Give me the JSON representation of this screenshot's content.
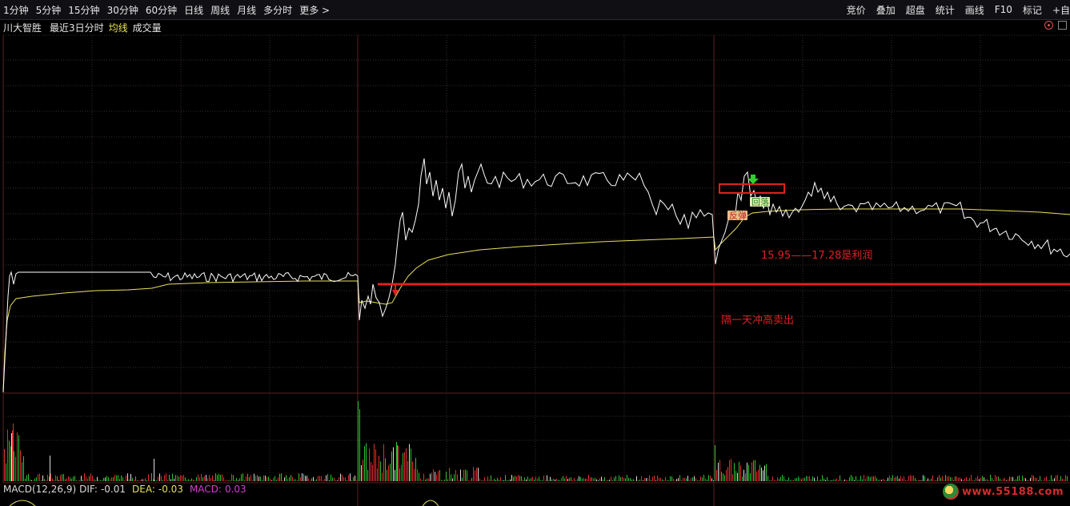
{
  "toolbar": {
    "periods": [
      "1分钟",
      "5分钟",
      "15分钟",
      "30分钟",
      "60分钟",
      "日线",
      "周线",
      "月线",
      "多分时",
      "更多 >"
    ],
    "right_items": [
      "竞价",
      "叠加",
      "超盘",
      "统计",
      "画线",
      "F10",
      "标记",
      "+自"
    ]
  },
  "info": {
    "stock_name": "川大智胜",
    "range_label": "最近3日分时",
    "avg_label": "均线",
    "volume_label": "成交量"
  },
  "annotations": {
    "rebound": "反弹",
    "pullback": "回落",
    "profit_text": "15.95——17.28是利润",
    "sell_text": "隔一天冲高卖出"
  },
  "macd": {
    "name": "MACD(12,26,9)",
    "dif_label": "DIF:",
    "dif_value": "-0.01",
    "dea_label": "DEA:",
    "dea_value": "-0.03",
    "macd_label": "MACD:",
    "macd_value": "0.03"
  },
  "watermark": {
    "text": "www.55188.com"
  },
  "colors": {
    "price_line": "#ffffff",
    "avg_line": "#e8e05a",
    "annotation_red": "#e02020",
    "grid": "#4a2020",
    "volume_up": "#e03030",
    "volume_down": "#30c030",
    "down_arrow": "#30d030",
    "up_arrow": "#e02020"
  }
}
